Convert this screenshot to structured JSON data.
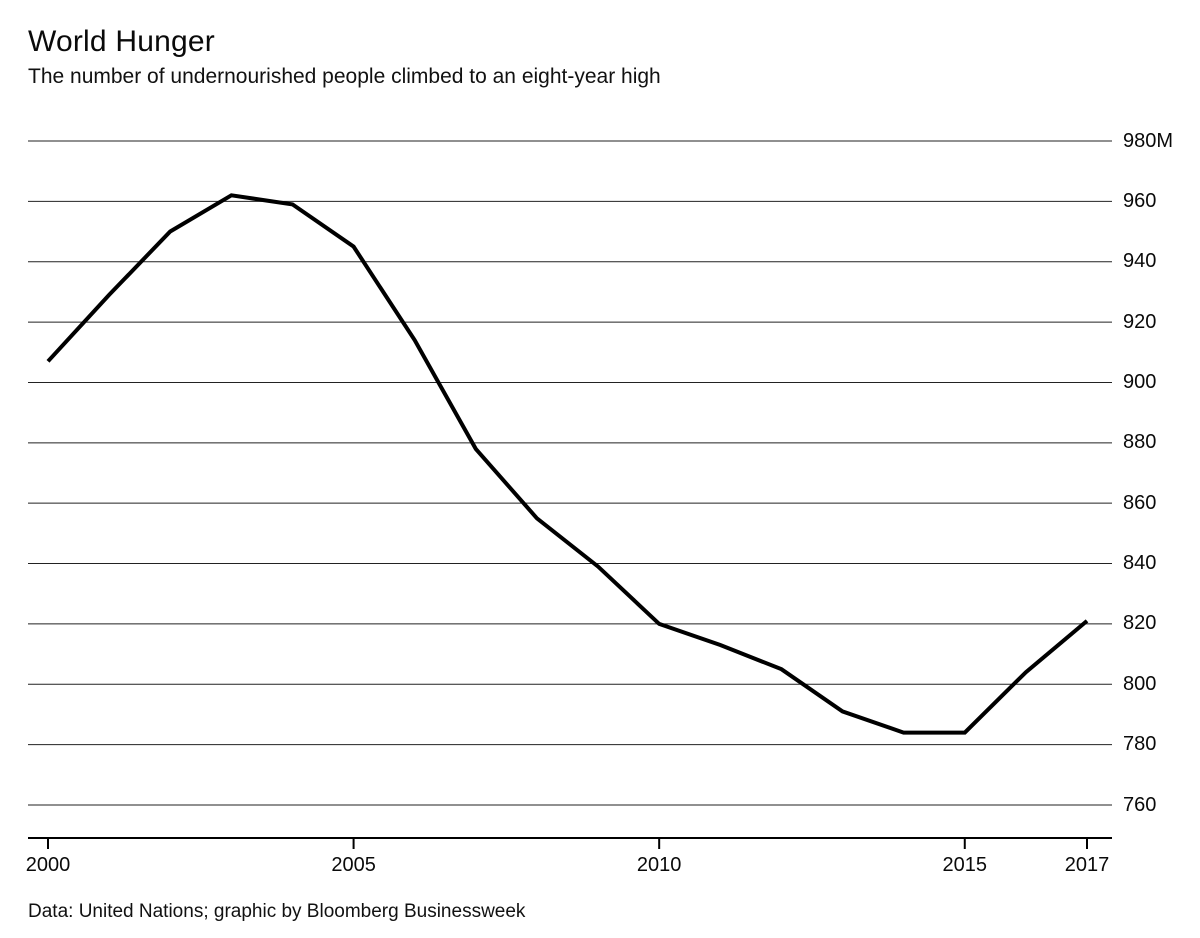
{
  "header": {
    "title": "World Hunger",
    "subtitle": "The number of undernourished people climbed to an eight-year high"
  },
  "footer": {
    "source": "Data: United Nations; graphic by Bloomberg Businessweek"
  },
  "chart_data": {
    "type": "line",
    "title": "World Hunger",
    "subtitle": "The number of undernourished people climbed to an eight-year high",
    "unit": "millions of people",
    "series": [
      {
        "name": "Number of undernourished people",
        "x": [
          2000,
          2001,
          2002,
          2003,
          2004,
          2005,
          2006,
          2007,
          2008,
          2009,
          2010,
          2011,
          2012,
          2013,
          2014,
          2015,
          2016,
          2017
        ],
        "values": [
          907,
          929,
          950,
          962,
          959,
          945,
          914,
          878,
          855,
          839,
          820,
          813,
          805,
          791,
          784,
          784,
          804,
          821
        ]
      }
    ],
    "xlim": [
      2000,
      2017
    ],
    "ylim": [
      760,
      980
    ],
    "y_ticks": {
      "values": [
        980,
        960,
        940,
        920,
        900,
        880,
        860,
        840,
        820,
        800,
        780,
        760
      ],
      "labels": [
        "980M",
        "960",
        "940",
        "920",
        "900",
        "880",
        "860",
        "840",
        "820",
        "800",
        "780",
        "760"
      ]
    },
    "x_ticks": {
      "values": [
        2000,
        2005,
        2010,
        2015,
        2017
      ],
      "labels": [
        "2000",
        "2005",
        "2010",
        "2015",
        "2017"
      ]
    },
    "grid": "horizontal",
    "legend": "none",
    "line_color": "#000000",
    "gridline_color": "#222222",
    "axis_color": "#000000",
    "source": "Data: United Nations; graphic by Bloomberg Businessweek"
  }
}
